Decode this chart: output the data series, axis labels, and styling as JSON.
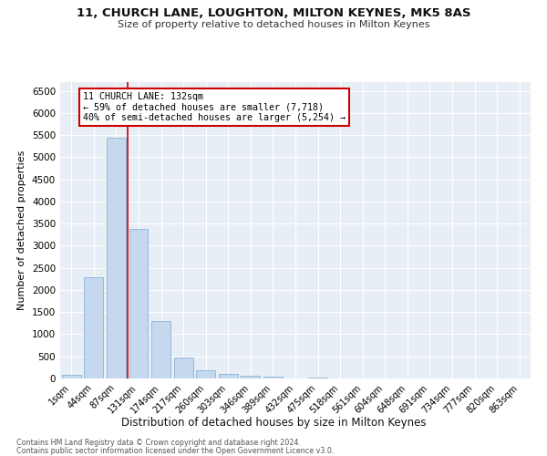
{
  "title1": "11, CHURCH LANE, LOUGHTON, MILTON KEYNES, MK5 8AS",
  "title2": "Size of property relative to detached houses in Milton Keynes",
  "xlabel": "Distribution of detached houses by size in Milton Keynes",
  "ylabel": "Number of detached properties",
  "footnote1": "Contains HM Land Registry data © Crown copyright and database right 2024.",
  "footnote2": "Contains public sector information licensed under the Open Government Licence v3.0.",
  "bar_labels": [
    "1sqm",
    "44sqm",
    "87sqm",
    "131sqm",
    "174sqm",
    "217sqm",
    "260sqm",
    "303sqm",
    "346sqm",
    "389sqm",
    "432sqm",
    "475sqm",
    "518sqm",
    "561sqm",
    "604sqm",
    "648sqm",
    "691sqm",
    "734sqm",
    "777sqm",
    "820sqm",
    "863sqm"
  ],
  "bar_values": [
    75,
    2280,
    5450,
    3380,
    1300,
    480,
    195,
    105,
    65,
    45,
    0,
    30,
    0,
    0,
    0,
    0,
    0,
    0,
    0,
    0,
    0
  ],
  "bar_color": "#c5d8ee",
  "bar_edge_color": "#8ab4d8",
  "annotation_text_line1": "11 CHURCH LANE: 132sqm",
  "annotation_text_line2": "← 59% of detached houses are smaller (7,718)",
  "annotation_text_line3": "40% of semi-detached houses are larger (5,254) →",
  "annotation_box_color": "#ffffff",
  "annotation_box_edge": "#cc0000",
  "vline_color": "#cc0000",
  "vline_x_idx": 2.5,
  "bg_color": "#e8eef5",
  "ylim": [
    0,
    6700
  ],
  "yticks": [
    0,
    500,
    1000,
    1500,
    2000,
    2500,
    3000,
    3500,
    4000,
    4500,
    5000,
    5500,
    6000,
    6500
  ]
}
